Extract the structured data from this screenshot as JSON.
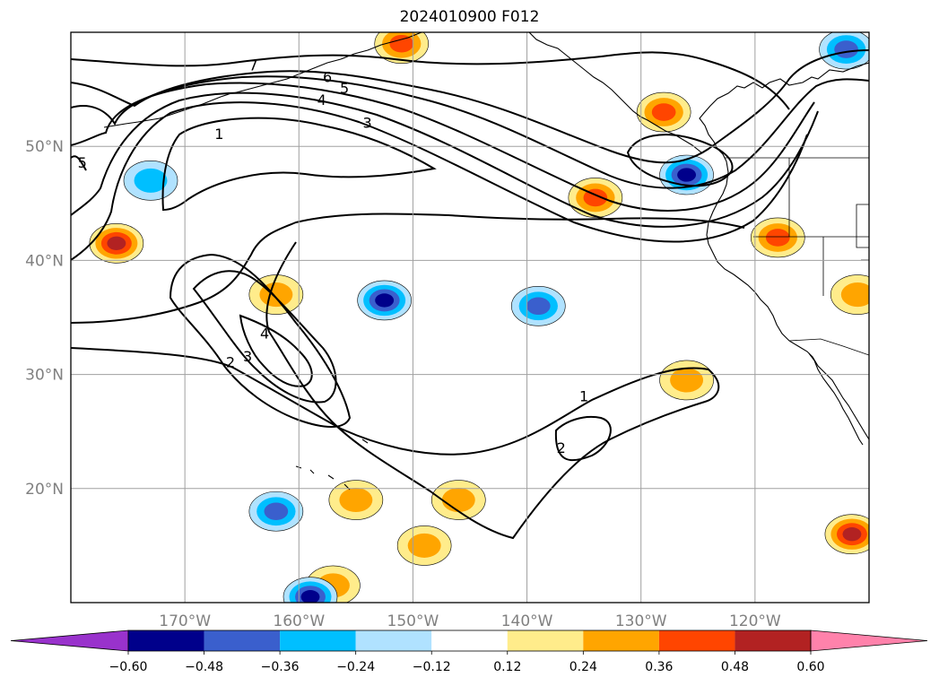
{
  "title": "2024010900 F012",
  "chart_data": {
    "type": "heatmap",
    "title": "2024010900 F012",
    "map_extent": {
      "lon": [
        -180,
        -110
      ],
      "lat": [
        10,
        60
      ]
    },
    "lon_ticks": [
      -170,
      -160,
      -150,
      -140,
      -130,
      -120
    ],
    "lon_tick_labels": [
      "170°W",
      "160°W",
      "150°W",
      "140°W",
      "130°W",
      "120°W"
    ],
    "lat_ticks": [
      20,
      30,
      40,
      50
    ],
    "lat_tick_labels": [
      "20°N",
      "30°N",
      "40°N",
      "50°N"
    ],
    "grid": true,
    "colorbar": {
      "orientation": "horizontal",
      "extend": "both",
      "ticks": [
        "−0.60",
        "−0.48",
        "−0.36",
        "−0.24",
        "−0.12",
        "0.12",
        "0.24",
        "0.36",
        "0.48",
        "0.60"
      ],
      "levels": [
        -0.6,
        -0.48,
        -0.36,
        -0.24,
        -0.12,
        0.12,
        0.24,
        0.36,
        0.48,
        0.6
      ],
      "colors": [
        "#9932cc",
        "#00008b",
        "#3a5fcd",
        "#00bfff",
        "#b0e2ff",
        "#ffffff",
        "#ffec8b",
        "#ffa500",
        "#ff4500",
        "#b22222",
        "#ff82ab"
      ]
    },
    "contour_labels": [
      "1",
      "2",
      "3",
      "4",
      "5",
      "6",
      "7"
    ],
    "contour_features": [
      {
        "label": "7",
        "lon": -164,
        "lat": 57
      },
      {
        "label": "6",
        "lon": -157.5,
        "lat": 56
      },
      {
        "label": "5",
        "lon": -156,
        "lat": 55
      },
      {
        "label": "4",
        "lon": -158,
        "lat": 54
      },
      {
        "label": "3",
        "lon": -154,
        "lat": 52
      },
      {
        "label": "1",
        "lon": -167,
        "lat": 51
      },
      {
        "label": "5",
        "lon": -179,
        "lat": 48.5
      },
      {
        "label": "4",
        "lon": -163,
        "lat": 33.5
      },
      {
        "label": "3",
        "lon": -164.5,
        "lat": 31.5
      },
      {
        "label": "2",
        "lon": -166,
        "lat": 31
      },
      {
        "label": "1",
        "lon": -135,
        "lat": 28
      },
      {
        "label": "2",
        "lon": -137,
        "lat": 23.5
      }
    ],
    "shaded_regions": [
      {
        "sign": "positive",
        "max_level": 0.48,
        "lon": -176,
        "lat": 41.5
      },
      {
        "sign": "positive",
        "max_level": 0.36,
        "lon": -151,
        "lat": 59
      },
      {
        "sign": "positive",
        "max_level": 0.24,
        "lon": -162,
        "lat": 37
      },
      {
        "sign": "positive",
        "max_level": 0.36,
        "lon": -134,
        "lat": 45.5
      },
      {
        "sign": "positive",
        "max_level": 0.36,
        "lon": -128,
        "lat": 53
      },
      {
        "sign": "positive",
        "max_level": 0.24,
        "lon": -126,
        "lat": 29.5
      },
      {
        "sign": "positive",
        "max_level": 0.36,
        "lon": -118,
        "lat": 42
      },
      {
        "sign": "positive",
        "max_level": 0.24,
        "lon": -111,
        "lat": 37
      },
      {
        "sign": "positive",
        "max_level": 0.48,
        "lon": -111.5,
        "lat": 16
      },
      {
        "sign": "positive",
        "max_level": 0.24,
        "lon": -155,
        "lat": 19
      },
      {
        "sign": "positive",
        "max_level": 0.24,
        "lon": -149,
        "lat": 15
      },
      {
        "sign": "positive",
        "max_level": 0.24,
        "lon": -146,
        "lat": 19
      },
      {
        "sign": "positive",
        "max_level": 0.24,
        "lon": -157,
        "lat": 11.5
      },
      {
        "sign": "negative",
        "max_level": -0.48,
        "lon": -152.5,
        "lat": 36.5
      },
      {
        "sign": "negative",
        "max_level": -0.36,
        "lon": -139,
        "lat": 36
      },
      {
        "sign": "negative",
        "max_level": -0.48,
        "lon": -126,
        "lat": 47.5
      },
      {
        "sign": "negative",
        "max_level": -0.36,
        "lon": -112,
        "lat": 58.5
      },
      {
        "sign": "negative",
        "max_level": -0.36,
        "lon": -162,
        "lat": 18
      },
      {
        "sign": "negative",
        "max_level": -0.48,
        "lon": -159,
        "lat": 10.5
      },
      {
        "sign": "negative",
        "max_level": -0.24,
        "lon": -173,
        "lat": 47
      }
    ]
  }
}
